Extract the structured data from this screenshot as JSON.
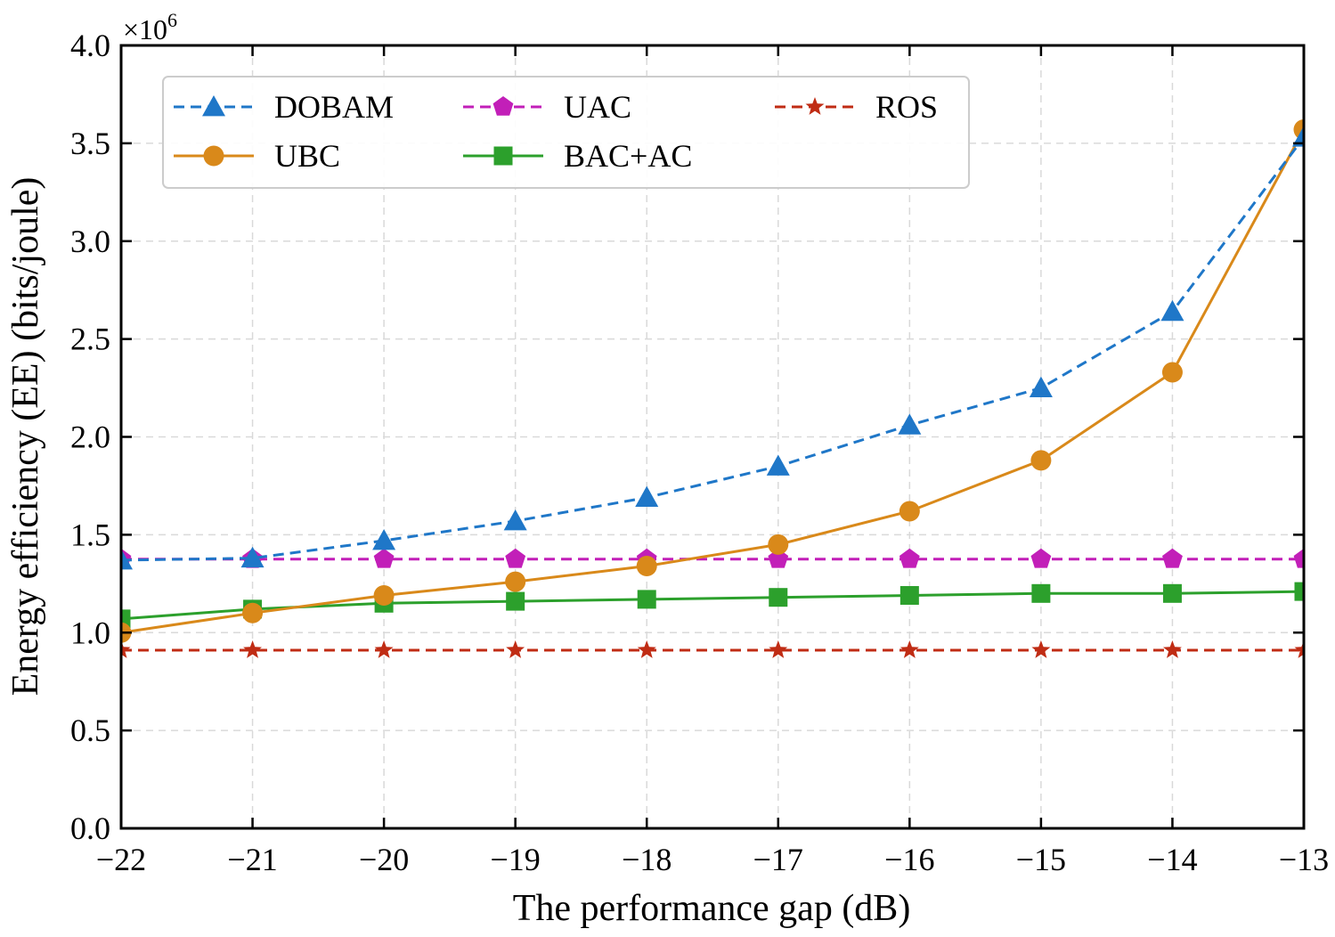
{
  "chart_data": {
    "type": "line",
    "xlabel": "The performance gap (dB)",
    "ylabel": "Energy efficiency (EE) (bits/joule)",
    "y_multiplier": {
      "prefix": "×10",
      "exponent": "6"
    },
    "xlim": [
      -22,
      -13
    ],
    "ylim": [
      0.0,
      4.0
    ],
    "x": [
      -22,
      -21,
      -20,
      -19,
      -18,
      -17,
      -16,
      -15,
      -14,
      -13
    ],
    "x_tick_labels": [
      "−22",
      "−21",
      "−20",
      "−19",
      "−18",
      "−17",
      "−16",
      "−15",
      "−14",
      "−13"
    ],
    "y_ticks": [
      0.0,
      0.5,
      1.0,
      1.5,
      2.0,
      2.5,
      3.0,
      3.5,
      4.0
    ],
    "y_tick_labels": [
      "0.0",
      "0.5",
      "1.0",
      "1.5",
      "2.0",
      "2.5",
      "3.0",
      "3.5",
      "4.0"
    ],
    "grid": true,
    "legend_position": "top-left",
    "series": [
      {
        "name": "DOBAM",
        "color": "#1f77c8",
        "line": "dashed",
        "marker": "triangle",
        "values": [
          1.37,
          1.38,
          1.47,
          1.57,
          1.69,
          1.85,
          2.06,
          2.25,
          2.64,
          3.53
        ]
      },
      {
        "name": "UBC",
        "color": "#d9891a",
        "line": "solid",
        "marker": "circle",
        "values": [
          1.0,
          1.1,
          1.19,
          1.26,
          1.34,
          1.45,
          1.62,
          1.88,
          2.33,
          3.57
        ]
      },
      {
        "name": "UAC",
        "color": "#c21fb8",
        "line": "dashed",
        "marker": "pentagon",
        "values": [
          1.375,
          1.375,
          1.375,
          1.375,
          1.375,
          1.375,
          1.375,
          1.375,
          1.375,
          1.375
        ]
      },
      {
        "name": "BAC+AC",
        "color": "#2ca02c",
        "line": "solid",
        "marker": "square",
        "values": [
          1.07,
          1.12,
          1.15,
          1.16,
          1.17,
          1.18,
          1.19,
          1.2,
          1.2,
          1.21
        ]
      },
      {
        "name": "ROS",
        "color": "#c02c14",
        "line": "dashed",
        "marker": "star",
        "values": [
          0.91,
          0.91,
          0.91,
          0.91,
          0.91,
          0.91,
          0.91,
          0.91,
          0.91,
          0.91
        ]
      }
    ]
  }
}
